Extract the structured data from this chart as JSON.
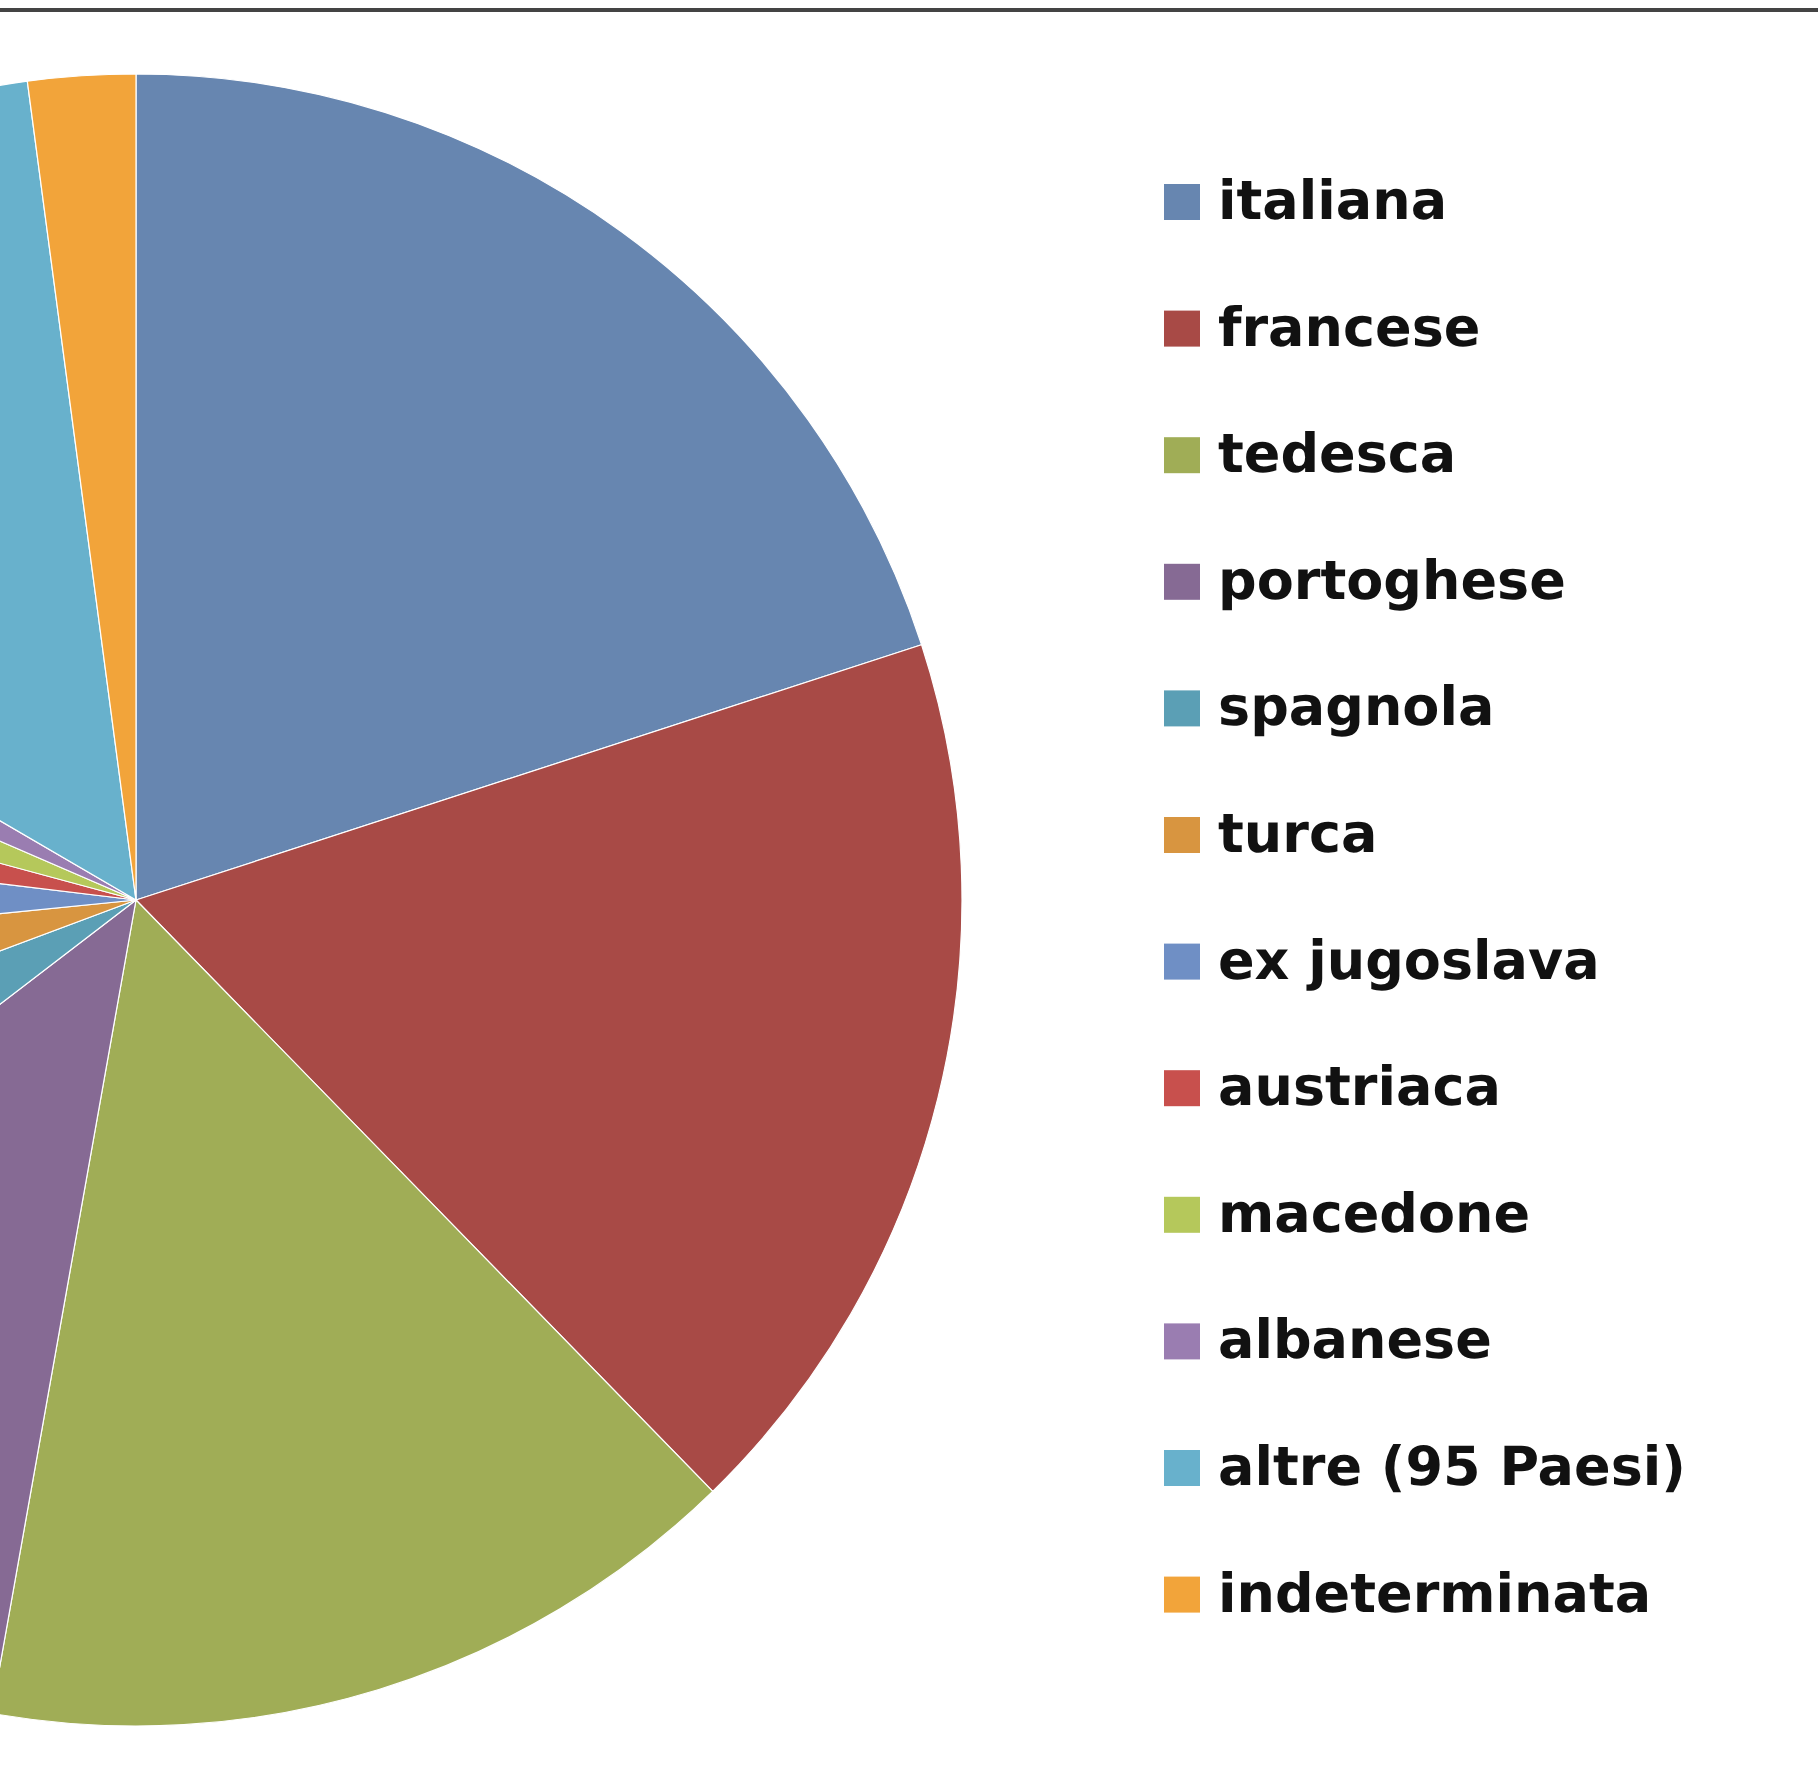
{
  "chart_data": {
    "type": "pie",
    "legend": "right",
    "categories": [
      "italiana",
      "francese",
      "tedesca",
      "portoghese",
      "spagnola",
      "turca",
      "ex jugoslava",
      "austriaca",
      "macedone",
      "albanese",
      "altre (95 Paesi)",
      "indeterminata"
    ],
    "values": [
      20,
      17.7,
      15.1,
      11.8,
      4.7,
      4.1,
      3.5,
      2.3,
      2.3,
      1.9,
      14.5,
      2.1
    ],
    "colors": [
      "#6786b0",
      "#a84a46",
      "#a0ad56",
      "#866a94",
      "#5b9fb5",
      "#d89540",
      "#6f8fc5",
      "#c8504d",
      "#b5c85b",
      "#9a7db1",
      "#68b1cc",
      "#f2a43a"
    ]
  }
}
